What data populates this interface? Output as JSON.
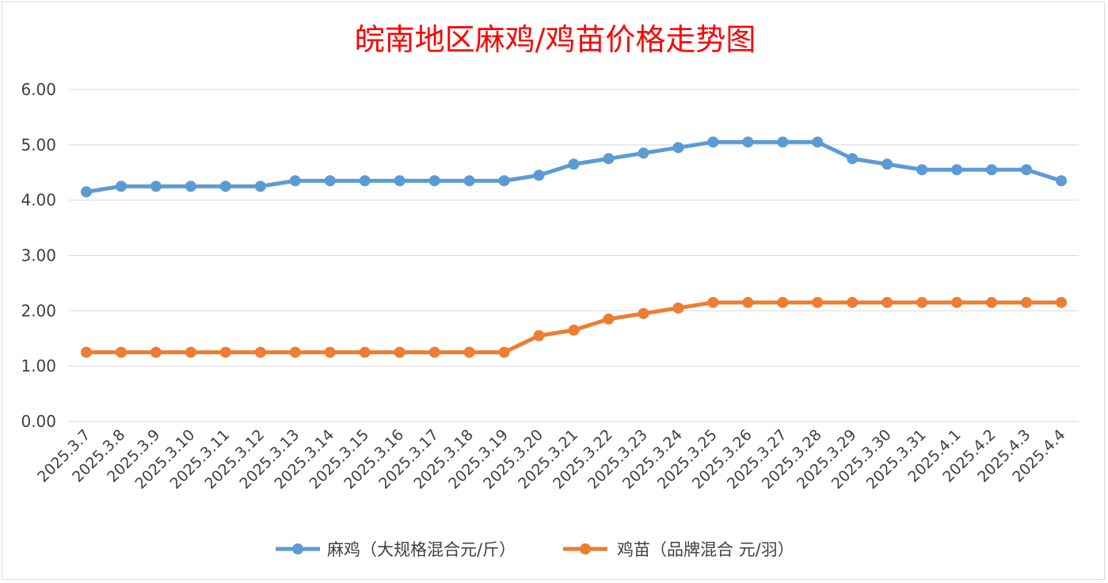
{
  "chart_data": {
    "type": "line",
    "title": "皖南地区麻鸡/鸡苗价格走势图",
    "xlabel": "",
    "ylabel": "",
    "ylim": [
      0,
      6
    ],
    "yticks": [
      "0.00",
      "1.00",
      "2.00",
      "3.00",
      "4.00",
      "5.00",
      "6.00"
    ],
    "grid": true,
    "legend_position": "bottom",
    "categories": [
      "2025.3.7",
      "2025.3.8",
      "2025.3.9",
      "2025.3.10",
      "2025.3.11",
      "2025.3.12",
      "2025.3.13",
      "2025.3.14",
      "2025.3.15",
      "2025.3.16",
      "2025.3.17",
      "2025.3.18",
      "2025.3.19",
      "2025.3.20",
      "2025.3.21",
      "2025.3.22",
      "2025.3.23",
      "2025.3.24",
      "2025.3.25",
      "2025.3.26",
      "2025.3.27",
      "2025.3.28",
      "2025.3.29",
      "2025.3.30",
      "2025.3.31",
      "2025.4.1",
      "2025.4.2",
      "2025.4.3",
      "2025.4.4"
    ],
    "series": [
      {
        "name": "麻鸡（大规格混合元/斤）",
        "color": "#5b9bd5",
        "values": [
          4.15,
          4.25,
          4.25,
          4.25,
          4.25,
          4.25,
          4.35,
          4.35,
          4.35,
          4.35,
          4.35,
          4.35,
          4.35,
          4.45,
          4.65,
          4.75,
          4.85,
          4.95,
          5.05,
          5.05,
          5.05,
          5.05,
          4.75,
          4.65,
          4.55,
          4.55,
          4.55,
          4.55,
          4.35
        ]
      },
      {
        "name": "鸡苗（品牌混合 元/羽）",
        "color": "#ed7d31",
        "values": [
          1.25,
          1.25,
          1.25,
          1.25,
          1.25,
          1.25,
          1.25,
          1.25,
          1.25,
          1.25,
          1.25,
          1.25,
          1.25,
          1.55,
          1.65,
          1.85,
          1.95,
          2.05,
          2.15,
          2.15,
          2.15,
          2.15,
          2.15,
          2.15,
          2.15,
          2.15,
          2.15,
          2.15,
          2.15
        ]
      }
    ]
  }
}
